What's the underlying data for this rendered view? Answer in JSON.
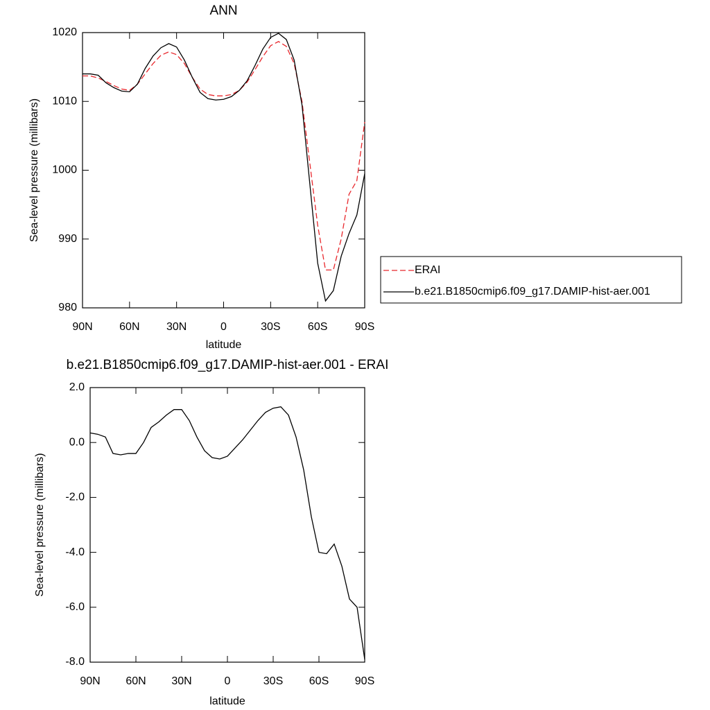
{
  "chart_data": [
    {
      "type": "line",
      "title": "ANN",
      "xlabel": "latitude",
      "ylabel": "Sea-level pressure (millibars)",
      "x": [
        90,
        85,
        80,
        75,
        70,
        65,
        60,
        55,
        50,
        45,
        40,
        35,
        30,
        25,
        20,
        15,
        10,
        5,
        0,
        -5,
        -10,
        -15,
        -20,
        -25,
        -30,
        -35,
        -40,
        -45,
        -50,
        -55,
        -60,
        -65,
        -70,
        -75,
        -80,
        -85,
        -90
      ],
      "xlim": [
        90,
        -90
      ],
      "xticks": [
        {
          "value": 90,
          "label": "90N"
        },
        {
          "value": 60,
          "label": "60N"
        },
        {
          "value": 30,
          "label": "30N"
        },
        0,
        {
          "value": -30,
          "label": "30S"
        },
        {
          "value": -60,
          "label": "60S"
        },
        {
          "value": -90,
          "label": "90S"
        }
      ],
      "ylim": [
        980,
        1020
      ],
      "yticks": [
        980,
        990,
        1000,
        1010,
        1020
      ],
      "legend": "right",
      "series": [
        {
          "name": "ERAI",
          "color": "#e8262b",
          "line_style": "dashed",
          "values": [
            1013.7,
            1013.7,
            1013.4,
            1012.9,
            1012.3,
            1011.8,
            1011.6,
            1012.5,
            1014.0,
            1015.5,
            1016.7,
            1017.2,
            1016.8,
            1015.5,
            1013.5,
            1011.8,
            1011.0,
            1010.8,
            1010.8,
            1011.0,
            1011.6,
            1012.8,
            1014.6,
            1016.5,
            1018.1,
            1018.7,
            1018.0,
            1015.5,
            1010.0,
            1001.0,
            992.0,
            985.5,
            985.5,
            990.0,
            996.5,
            998.5,
            1007.0
          ]
        },
        {
          "name": "b.e21.B1850cmip6.f09_g17.DAMIP-hist-aer.001",
          "color": "#000000",
          "line_style": "solid",
          "values": [
            1014.0,
            1014.0,
            1013.8,
            1012.7,
            1012.0,
            1011.5,
            1011.4,
            1012.5,
            1014.8,
            1016.6,
            1017.8,
            1018.4,
            1017.9,
            1016.0,
            1013.5,
            1011.3,
            1010.4,
            1010.2,
            1010.3,
            1010.7,
            1011.6,
            1013.0,
            1015.2,
            1017.6,
            1019.3,
            1019.9,
            1019.0,
            1016.0,
            1009.5,
            998.0,
            986.5,
            981.0,
            982.5,
            987.5,
            990.8,
            993.5,
            999.5
          ]
        }
      ]
    },
    {
      "type": "line",
      "title": "b.e21.B1850cmip6.f09_g17.DAMIP-hist-aer.001 - ERAI",
      "xlabel": "latitude",
      "ylabel": "Sea-level pressure (millibars)",
      "x": [
        90,
        85,
        80,
        75,
        70,
        65,
        60,
        55,
        50,
        45,
        40,
        35,
        30,
        25,
        20,
        15,
        10,
        5,
        0,
        -5,
        -10,
        -15,
        -20,
        -25,
        -30,
        -35,
        -40,
        -45,
        -50,
        -55,
        -60,
        -65,
        -70,
        -75,
        -80,
        -85,
        -90
      ],
      "xlim": [
        90,
        -90
      ],
      "xticks": [
        {
          "value": 90,
          "label": "90N"
        },
        {
          "value": 60,
          "label": "60N"
        },
        {
          "value": 30,
          "label": "30N"
        },
        0,
        {
          "value": -30,
          "label": "30S"
        },
        {
          "value": -60,
          "label": "60S"
        },
        {
          "value": -90,
          "label": "90S"
        }
      ],
      "ylim": [
        -8,
        2
      ],
      "yticks": [
        {
          "value": -8,
          "label": "-8.0"
        },
        {
          "value": -6,
          "label": "-6.0"
        },
        {
          "value": -4,
          "label": "-4.0"
        },
        {
          "value": -2,
          "label": "-2.0"
        },
        {
          "value": 0,
          "label": "0.0"
        },
        {
          "value": 2,
          "label": "2.0"
        }
      ],
      "series": [
        {
          "color": "#000000",
          "line_style": "solid",
          "values": [
            0.35,
            0.3,
            0.2,
            -0.4,
            -0.45,
            -0.4,
            -0.4,
            0.0,
            0.55,
            0.75,
            1.0,
            1.2,
            1.2,
            0.8,
            0.2,
            -0.3,
            -0.55,
            -0.6,
            -0.5,
            -0.2,
            0.1,
            0.45,
            0.8,
            1.1,
            1.25,
            1.3,
            1.0,
            0.2,
            -1.0,
            -2.7,
            -4.0,
            -4.05,
            -3.7,
            -4.5,
            -5.7,
            -6.0,
            -7.9
          ]
        }
      ]
    }
  ]
}
